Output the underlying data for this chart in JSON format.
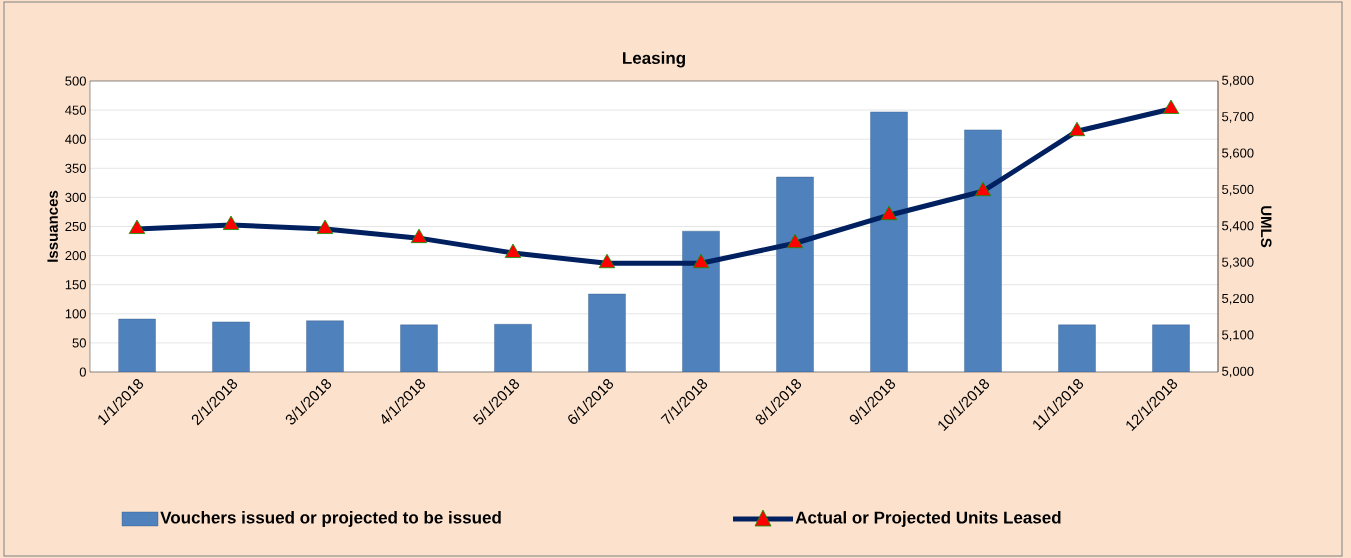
{
  "chart_data": {
    "type": "bar",
    "title": "Leasing",
    "ylabel": "Issuances",
    "y2label": "UMLS",
    "categories": [
      "1/1/2018",
      "2/1/2018",
      "3/1/2018",
      "4/1/2018",
      "5/1/2018",
      "6/1/2018",
      "7/1/2018",
      "8/1/2018",
      "9/1/2018",
      "10/1/2018",
      "11/1/2018",
      "12/1/2018"
    ],
    "series": [
      {
        "name": "Vouchers issued or projected to be issued",
        "color": "#4f81bd",
        "values": [
          91,
          86,
          88,
          81,
          82,
          134,
          242,
          335,
          447,
          416,
          81,
          81
        ]
      },
      {
        "name": "Actual or Projected Units Leased",
        "type": "line",
        "axis": "y2",
        "color": "#002060",
        "marker": "triangle",
        "values": [
          5393,
          5404,
          5393,
          5368,
          5327,
          5299,
          5299,
          5354,
          5431,
          5497,
          5662,
          5723
        ]
      }
    ],
    "ylim": [
      0,
      500
    ],
    "yticks": [
      0,
      50,
      100,
      150,
      200,
      250,
      300,
      350,
      400,
      450,
      500
    ],
    "y2lim": [
      5000,
      5800
    ],
    "y2ticks": [
      {
        "value": 5000,
        "label": "5,000"
      },
      {
        "value": 5100,
        "label": "5,100"
      },
      {
        "value": 5200,
        "label": "5,200"
      },
      {
        "value": 5300,
        "label": "5,300"
      },
      {
        "value": 5400,
        "label": "5,400"
      },
      {
        "value": 5500,
        "label": "5,500"
      },
      {
        "value": 5600,
        "label": "5,600"
      },
      {
        "value": 5700,
        "label": "5,700"
      },
      {
        "value": 5800,
        "label": "5,800"
      }
    ],
    "grid": "y",
    "legend": "bottom"
  }
}
